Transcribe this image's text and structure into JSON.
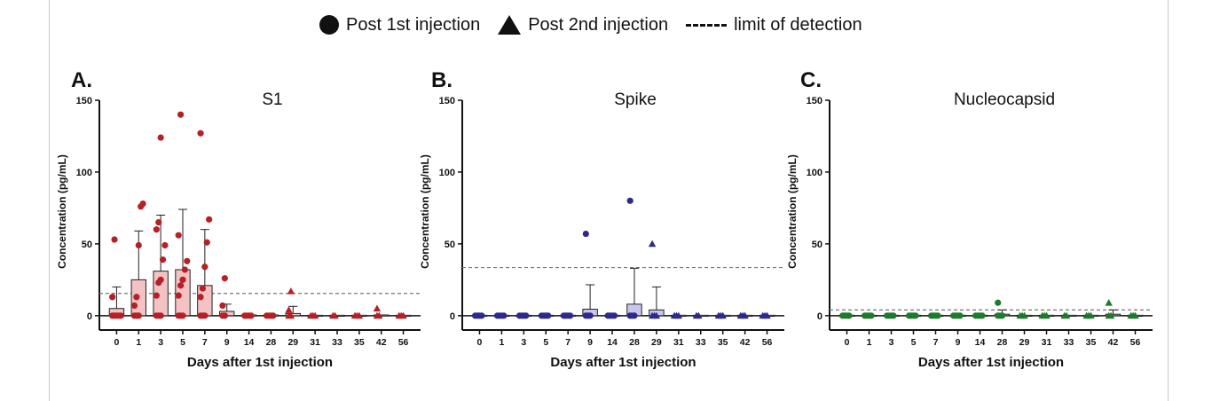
{
  "legend": {
    "circle_label": "Post 1st injection",
    "triangle_label": "Post 2nd injection",
    "dash_label": "limit of detection"
  },
  "chart_data": [
    {
      "type": "bar",
      "panel_label": "A.",
      "title": "S1",
      "xlabel": "Days after 1st injection",
      "ylabel": "Concentration (pg/mL)",
      "ylim": [
        -10,
        150
      ],
      "yticks": [
        0,
        50,
        100,
        150
      ],
      "categories": [
        "0",
        "1",
        "3",
        "5",
        "7",
        "9",
        "14",
        "28",
        "29",
        "31",
        "33",
        "35",
        "42",
        "56"
      ],
      "values": [
        5,
        25,
        31,
        32,
        21,
        3,
        0.5,
        0.5,
        1.5,
        0.3,
        0.3,
        0.3,
        0.5,
        0.3
      ],
      "sd": [
        15,
        34,
        39,
        42,
        39,
        5,
        0,
        0,
        5,
        0,
        0,
        0,
        0,
        0
      ],
      "limit_of_detection": 15.5,
      "points": [
        [
          0,
          0,
          "c"
        ],
        [
          0,
          0,
          "c"
        ],
        [
          0,
          0,
          "c"
        ],
        [
          0,
          0,
          "c"
        ],
        [
          0,
          0,
          "c"
        ],
        [
          0,
          13,
          "c"
        ],
        [
          0,
          53,
          "c"
        ],
        [
          1,
          0,
          "c"
        ],
        [
          1,
          0,
          "c"
        ],
        [
          1,
          0,
          "c"
        ],
        [
          1,
          7,
          "c"
        ],
        [
          1,
          13,
          "c"
        ],
        [
          1,
          49,
          "c"
        ],
        [
          1,
          76,
          "c"
        ],
        [
          1,
          78,
          "c"
        ],
        [
          3,
          0,
          "c"
        ],
        [
          3,
          0,
          "c"
        ],
        [
          3,
          0,
          "c"
        ],
        [
          3,
          14,
          "c"
        ],
        [
          3,
          23,
          "c"
        ],
        [
          3,
          25,
          "c"
        ],
        [
          3,
          39,
          "c"
        ],
        [
          3,
          49,
          "c"
        ],
        [
          3,
          60,
          "c"
        ],
        [
          3,
          65,
          "c"
        ],
        [
          3,
          124,
          "c"
        ],
        [
          5,
          0,
          "c"
        ],
        [
          5,
          0,
          "c"
        ],
        [
          5,
          0,
          "c"
        ],
        [
          5,
          14,
          "c"
        ],
        [
          5,
          21,
          "c"
        ],
        [
          5,
          25,
          "c"
        ],
        [
          5,
          32,
          "c"
        ],
        [
          5,
          38,
          "c"
        ],
        [
          5,
          56,
          "c"
        ],
        [
          5,
          140,
          "c"
        ],
        [
          7,
          0,
          "c"
        ],
        [
          7,
          0,
          "c"
        ],
        [
          7,
          0,
          "c"
        ],
        [
          7,
          13,
          "c"
        ],
        [
          7,
          19,
          "c"
        ],
        [
          7,
          34,
          "c"
        ],
        [
          7,
          51,
          "c"
        ],
        [
          7,
          67,
          "c"
        ],
        [
          7,
          127,
          "c"
        ],
        [
          9,
          0,
          "c"
        ],
        [
          9,
          0,
          "c"
        ],
        [
          9,
          7,
          "c"
        ],
        [
          9,
          26,
          "c"
        ],
        [
          14,
          0,
          "c"
        ],
        [
          14,
          0,
          "c"
        ],
        [
          14,
          0,
          "c"
        ],
        [
          14,
          0,
          "c"
        ],
        [
          28,
          0,
          "c"
        ],
        [
          28,
          0,
          "c"
        ],
        [
          28,
          0,
          "c"
        ],
        [
          28,
          0,
          "c"
        ],
        [
          29,
          0,
          "t"
        ],
        [
          29,
          0,
          "t"
        ],
        [
          29,
          4,
          "t"
        ],
        [
          29,
          17,
          "t"
        ],
        [
          31,
          0,
          "t"
        ],
        [
          31,
          0,
          "t"
        ],
        [
          31,
          0,
          "t"
        ],
        [
          33,
          0,
          "t"
        ],
        [
          33,
          0,
          "t"
        ],
        [
          35,
          0,
          "t"
        ],
        [
          35,
          0,
          "t"
        ],
        [
          35,
          0,
          "t"
        ],
        [
          42,
          0,
          "t"
        ],
        [
          42,
          0,
          "t"
        ],
        [
          42,
          5,
          "t"
        ],
        [
          56,
          0,
          "t"
        ],
        [
          56,
          0,
          "t"
        ],
        [
          56,
          0,
          "t"
        ]
      ],
      "colors": {
        "points": "#b52025",
        "bar_fill": "#f4c2c3",
        "error": "#b52025"
      },
      "grid": false
    },
    {
      "type": "bar",
      "panel_label": "B.",
      "title": "Spike",
      "xlabel": "Days after 1st injection",
      "ylabel": "Concentration (pg/mL)",
      "ylim": [
        -10,
        150
      ],
      "yticks": [
        0,
        50,
        100,
        150
      ],
      "categories": [
        "0",
        "1",
        "3",
        "5",
        "7",
        "9",
        "14",
        "28",
        "29",
        "31",
        "33",
        "35",
        "42",
        "56"
      ],
      "values": [
        0.3,
        0.3,
        0.3,
        0.3,
        0.3,
        4.5,
        0.3,
        8,
        4,
        0.3,
        0.3,
        0.3,
        0.3,
        0.3
      ],
      "sd": [
        0,
        0,
        0,
        0,
        0,
        17,
        0,
        25,
        16,
        0,
        0,
        0,
        0,
        0
      ],
      "limit_of_detection": 33.5,
      "points": [
        [
          0,
          0,
          "c"
        ],
        [
          0,
          0,
          "c"
        ],
        [
          0,
          0,
          "c"
        ],
        [
          0,
          0,
          "c"
        ],
        [
          1,
          0,
          "c"
        ],
        [
          1,
          0,
          "c"
        ],
        [
          1,
          0,
          "c"
        ],
        [
          1,
          0,
          "c"
        ],
        [
          3,
          0,
          "c"
        ],
        [
          3,
          0,
          "c"
        ],
        [
          3,
          0,
          "c"
        ],
        [
          3,
          0,
          "c"
        ],
        [
          5,
          0,
          "c"
        ],
        [
          5,
          0,
          "c"
        ],
        [
          5,
          0,
          "c"
        ],
        [
          5,
          0,
          "c"
        ],
        [
          7,
          0,
          "c"
        ],
        [
          7,
          0,
          "c"
        ],
        [
          7,
          0,
          "c"
        ],
        [
          7,
          0,
          "c"
        ],
        [
          9,
          0,
          "c"
        ],
        [
          9,
          0,
          "c"
        ],
        [
          9,
          0,
          "c"
        ],
        [
          9,
          57,
          "c"
        ],
        [
          14,
          0,
          "c"
        ],
        [
          14,
          0,
          "c"
        ],
        [
          14,
          0,
          "c"
        ],
        [
          14,
          0,
          "c"
        ],
        [
          28,
          0,
          "c"
        ],
        [
          28,
          0,
          "c"
        ],
        [
          28,
          0,
          "c"
        ],
        [
          28,
          80,
          "c"
        ],
        [
          29,
          0,
          "t"
        ],
        [
          29,
          0,
          "t"
        ],
        [
          29,
          0,
          "t"
        ],
        [
          29,
          50,
          "t"
        ],
        [
          31,
          0,
          "t"
        ],
        [
          31,
          0,
          "t"
        ],
        [
          31,
          0,
          "t"
        ],
        [
          33,
          0,
          "t"
        ],
        [
          33,
          0,
          "t"
        ],
        [
          35,
          0,
          "t"
        ],
        [
          35,
          0,
          "t"
        ],
        [
          35,
          0,
          "t"
        ],
        [
          42,
          0,
          "t"
        ],
        [
          42,
          0,
          "t"
        ],
        [
          42,
          0,
          "t"
        ],
        [
          56,
          0,
          "t"
        ],
        [
          56,
          0,
          "t"
        ],
        [
          56,
          0,
          "t"
        ]
      ],
      "colors": {
        "points": "#2e2a8c",
        "bar_fill": "#c9c8ea",
        "error": "#2e2a8c"
      },
      "grid": false
    },
    {
      "type": "bar",
      "panel_label": "C.",
      "title": "Nucleocapsid",
      "xlabel": "Days after 1st injection",
      "ylabel": "Concentration (pg/mL)",
      "ylim": [
        -10,
        150
      ],
      "yticks": [
        0,
        50,
        100,
        150
      ],
      "categories": [
        "0",
        "1",
        "3",
        "5",
        "7",
        "9",
        "14",
        "28",
        "29",
        "31",
        "33",
        "35",
        "42",
        "56"
      ],
      "values": [
        0.3,
        0.3,
        0.3,
        0.3,
        0.3,
        0.3,
        0.3,
        1,
        0.3,
        0.3,
        0.3,
        0.3,
        1,
        0.3
      ],
      "sd": [
        0,
        0,
        0,
        0,
        0,
        0,
        0,
        3,
        0,
        0,
        0,
        0,
        3,
        0
      ],
      "limit_of_detection": 4,
      "points": [
        [
          0,
          0,
          "c"
        ],
        [
          0,
          0,
          "c"
        ],
        [
          0,
          0,
          "c"
        ],
        [
          0,
          0,
          "c"
        ],
        [
          1,
          0,
          "c"
        ],
        [
          1,
          0,
          "c"
        ],
        [
          1,
          0,
          "c"
        ],
        [
          1,
          0,
          "c"
        ],
        [
          3,
          0,
          "c"
        ],
        [
          3,
          0,
          "c"
        ],
        [
          3,
          0,
          "c"
        ],
        [
          3,
          0,
          "c"
        ],
        [
          5,
          0,
          "c"
        ],
        [
          5,
          0,
          "c"
        ],
        [
          5,
          0,
          "c"
        ],
        [
          5,
          0,
          "c"
        ],
        [
          7,
          0,
          "c"
        ],
        [
          7,
          0,
          "c"
        ],
        [
          7,
          0,
          "c"
        ],
        [
          7,
          0,
          "c"
        ],
        [
          9,
          0,
          "c"
        ],
        [
          9,
          0,
          "c"
        ],
        [
          9,
          0,
          "c"
        ],
        [
          9,
          0,
          "c"
        ],
        [
          14,
          0,
          "c"
        ],
        [
          14,
          0,
          "c"
        ],
        [
          14,
          0,
          "c"
        ],
        [
          14,
          0,
          "c"
        ],
        [
          28,
          0,
          "c"
        ],
        [
          28,
          0,
          "c"
        ],
        [
          28,
          0,
          "c"
        ],
        [
          28,
          9,
          "c"
        ],
        [
          29,
          0,
          "t"
        ],
        [
          29,
          0,
          "t"
        ],
        [
          29,
          0,
          "t"
        ],
        [
          31,
          0,
          "t"
        ],
        [
          31,
          0,
          "t"
        ],
        [
          31,
          0,
          "t"
        ],
        [
          33,
          0,
          "t"
        ],
        [
          33,
          0,
          "t"
        ],
        [
          35,
          0,
          "t"
        ],
        [
          35,
          0,
          "t"
        ],
        [
          35,
          0,
          "t"
        ],
        [
          42,
          0,
          "t"
        ],
        [
          42,
          0,
          "t"
        ],
        [
          42,
          9,
          "t"
        ],
        [
          56,
          0,
          "t"
        ],
        [
          56,
          0,
          "t"
        ],
        [
          56,
          0,
          "t"
        ]
      ],
      "colors": {
        "points": "#1e7a2c",
        "bar_fill": "#b8dcb9",
        "error": "#1e7a2c"
      },
      "grid": false
    }
  ]
}
